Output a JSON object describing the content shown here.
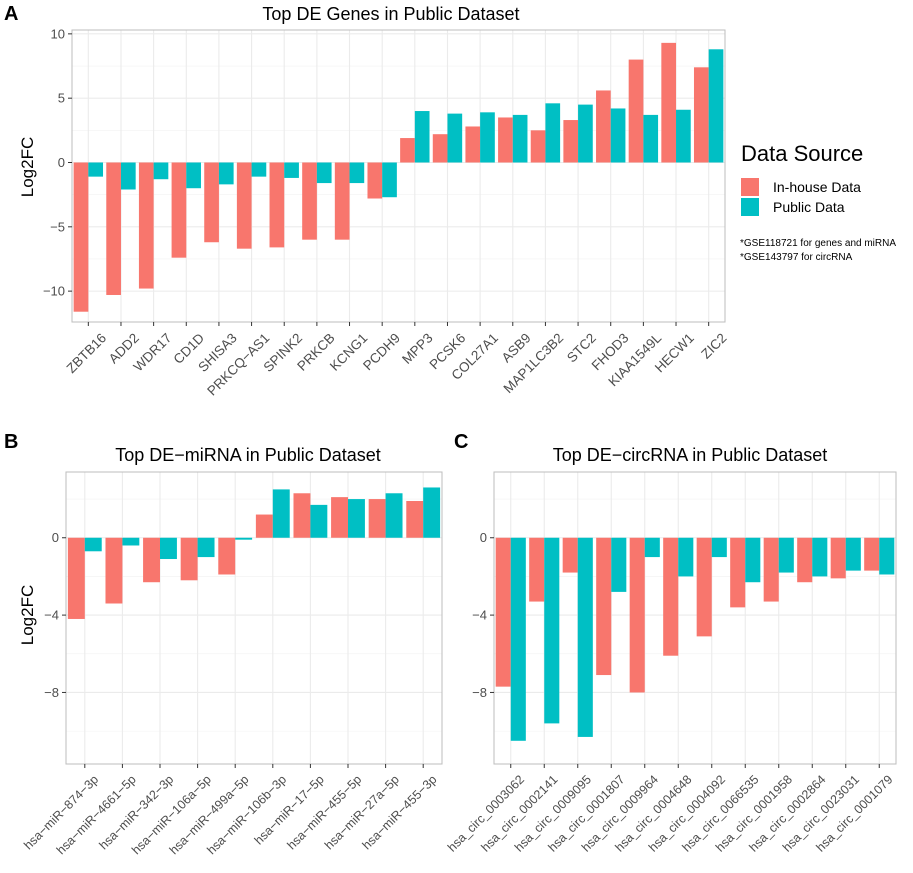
{
  "colors": {
    "inhouse": "#F8766D",
    "public": "#00BFC4",
    "panel_bg": "#FFFFFF",
    "grid": "#EBEBEB",
    "panel_border": "#BDBDBD",
    "tick_text": "#4D4D4D"
  },
  "legend": {
    "title": "Data Source",
    "items": [
      "In-house Data",
      "Public Data"
    ],
    "notes": [
      "*GSE118721 for genes and miRNA",
      "*GSE143797 for circRNA"
    ]
  },
  "chart_data": [
    {
      "panel": "A",
      "type": "bar",
      "title": "Top DE Genes in Public Dataset",
      "xlabel": "",
      "ylabel": "Log2FC",
      "ylim": [
        -12.4,
        10.3
      ],
      "yticks": [
        -10,
        -5,
        0,
        5,
        10
      ],
      "ytick_labels": [
        "−10",
        "−5",
        "0",
        "5",
        "10"
      ],
      "categories": [
        "ZBTB16",
        "ADD2",
        "WDR17",
        "CD1D",
        "SHISA3",
        "PRKCQ−AS1",
        "SPINK2",
        "PRKCB",
        "KCNG1",
        "PCDH9",
        "MPP3",
        "PCSK6",
        "COL27A1",
        "ASB9",
        "MAP1LC3B2",
        "STC2",
        "FHOD3",
        "KIAA1549L",
        "HECW1",
        "ZIC2"
      ],
      "series": [
        {
          "name": "In-house Data",
          "values": [
            -11.6,
            -10.3,
            -9.8,
            -7.4,
            -6.2,
            -6.7,
            -6.6,
            -6.0,
            -6.0,
            -2.8,
            1.9,
            2.2,
            2.8,
            3.5,
            2.5,
            3.3,
            5.6,
            8.0,
            9.3,
            7.4
          ]
        },
        {
          "name": "Public Data",
          "values": [
            -1.1,
            -2.1,
            -1.3,
            -2.0,
            -1.7,
            -1.1,
            -1.2,
            -1.6,
            -1.6,
            -2.7,
            4.0,
            3.8,
            3.9,
            3.7,
            4.6,
            4.5,
            4.2,
            3.7,
            4.1,
            8.8
          ]
        }
      ]
    },
    {
      "panel": "B",
      "type": "bar",
      "title": "Top DE−miRNA in Public Dataset",
      "xlabel": "",
      "ylabel": "Log2FC",
      "ylim": [
        -11.7,
        3.4
      ],
      "yticks": [
        -8,
        -4,
        0
      ],
      "ytick_labels": [
        "−8",
        "−4",
        "0"
      ],
      "categories": [
        "hsa−miR−874−3p",
        "hsa−miR−4661−5p",
        "hsa−miR−342−3p",
        "hsa−miR−106a−5p",
        "hsa−miR−499a−5p",
        "hsa−miR−106b−3p",
        "hsa−miR−17−5p",
        "hsa−miR−455−5p",
        "hsa−miR−27a−5p",
        "hsa−miR−455−3p"
      ],
      "series": [
        {
          "name": "In-house Data",
          "values": [
            -4.2,
            -3.4,
            -2.3,
            -2.2,
            -1.9,
            1.2,
            2.3,
            2.1,
            2.0,
            1.9
          ]
        },
        {
          "name": "Public Data",
          "values": [
            -0.7,
            -0.4,
            -1.1,
            -1.0,
            -0.1,
            2.5,
            1.7,
            2.0,
            2.3,
            2.6
          ]
        }
      ]
    },
    {
      "panel": "C",
      "type": "bar",
      "title": "Top DE−circRNA in Public Dataset",
      "xlabel": "",
      "ylabel": "",
      "ylim": [
        -11.7,
        3.4
      ],
      "yticks": [
        -8,
        -4,
        0
      ],
      "ytick_labels": [
        "−8",
        "−4",
        "0"
      ],
      "categories": [
        "hsa_circ_0003062",
        "hsa_circ_0002141",
        "hsa_circ_0009095",
        "hsa_circ_0001807",
        "hsa_circ_0009964",
        "hsa_circ_0004648",
        "hsa_circ_0004092",
        "hsa_circ_0066535",
        "hsa_circ_0001958",
        "hsa_circ_0002864",
        "hsa_circ_0023031",
        "hsa_circ_0001079"
      ],
      "series": [
        {
          "name": "In-house Data",
          "values": [
            -7.7,
            -3.3,
            -1.8,
            -7.1,
            -8.0,
            -6.1,
            -5.1,
            -3.6,
            -3.3,
            -2.3,
            -2.1,
            -1.7
          ]
        },
        {
          "name": "Public Data",
          "values": [
            -10.5,
            -9.6,
            -10.3,
            -2.8,
            -1.0,
            -2.0,
            -1.0,
            -2.3,
            -1.8,
            -2.0,
            -1.7,
            -1.9
          ]
        }
      ]
    }
  ]
}
